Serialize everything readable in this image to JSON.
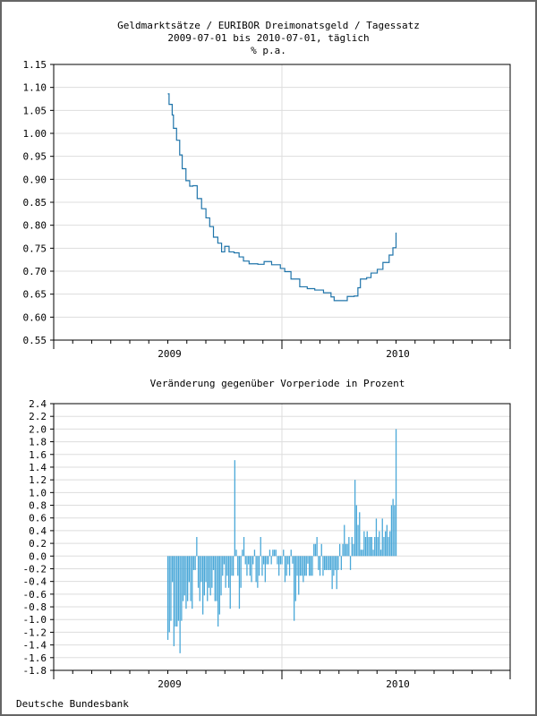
{
  "title_lines": [
    "Geldmarktsätze / EURIBOR Dreimonatsgeld / Tagessatz",
    "2009-07-01 bis 2010-07-01, täglich",
    "% p.a."
  ],
  "footer": "Deutsche Bundesbank",
  "colors": {
    "line": "#1f74aa",
    "bar": "#4aa8d8",
    "grid": "#dddddd",
    "axis": "#000000",
    "border": "#666666"
  },
  "chart_data": [
    {
      "type": "line",
      "title": "Geldmarktsätze / EURIBOR Dreimonatsgeld / Tagessatz",
      "subtitle": "2009-07-01 bis 2010-07-01, täglich",
      "ylabel": "% p.a.",
      "x_unit": "days since 2009-07-01",
      "xlim_months": [
        "2009-01",
        "2010-12"
      ],
      "ylim": [
        0.55,
        1.15
      ],
      "yticks": [
        "1.15",
        "1.10",
        "1.05",
        "1.00",
        "0.95",
        "0.90",
        "0.85",
        "0.80",
        "0.75",
        "0.70",
        "0.65",
        "0.60",
        "0.55"
      ],
      "xtick_labels": [
        "2009",
        "2010"
      ],
      "grid": true,
      "x": [
        0,
        2,
        7,
        9,
        14,
        19,
        23,
        29,
        35,
        40,
        47,
        54,
        61,
        67,
        73,
        80,
        86,
        91,
        98,
        106,
        114,
        121,
        130,
        144,
        154,
        166,
        180,
        187,
        197,
        211,
        223,
        235,
        249,
        261,
        266,
        275,
        287,
        298,
        304,
        308,
        318,
        325,
        335,
        344,
        354,
        360,
        365
      ],
      "y": [
        1.086,
        1.063,
        1.04,
        1.011,
        0.985,
        0.953,
        0.923,
        0.897,
        0.885,
        0.886,
        0.858,
        0.836,
        0.816,
        0.797,
        0.774,
        0.761,
        0.742,
        0.754,
        0.742,
        0.74,
        0.731,
        0.722,
        0.716,
        0.715,
        0.721,
        0.714,
        0.706,
        0.699,
        0.683,
        0.666,
        0.662,
        0.659,
        0.653,
        0.644,
        0.636,
        0.636,
        0.645,
        0.646,
        0.664,
        0.683,
        0.686,
        0.696,
        0.704,
        0.719,
        0.735,
        0.751,
        0.784
      ]
    },
    {
      "type": "bar",
      "title": "Veränderung gegenüber Vorperiode in Prozent",
      "x_range": [
        "2009-07-01",
        "2010-07-01"
      ],
      "xlim_months": [
        "2009-01",
        "2010-12"
      ],
      "ylim": [
        -1.8,
        2.4
      ],
      "yticks": [
        "2.4",
        "2.2",
        "2.0",
        "1.8",
        "1.6",
        "1.4",
        "1.2",
        "1.0",
        "0.8",
        "0.6",
        "0.4",
        "0.2",
        "0.0",
        "-0.2",
        "-0.4",
        "-0.6",
        "-0.8",
        "-1.0",
        "-1.2",
        "-1.4",
        "-1.6",
        "-1.8"
      ],
      "xtick_labels": [
        "2009",
        "2010"
      ],
      "grid": true,
      "values": [
        -1.32,
        -1.2,
        -1.02,
        -0.41,
        -1.42,
        -1.11,
        -1.11,
        -1.02,
        -1.53,
        -1.02,
        -0.71,
        -0.62,
        -0.83,
        -0.71,
        -0.41,
        -0.71,
        -0.83,
        -0.22,
        -0.22,
        0.3,
        -0.5,
        -0.71,
        -0.41,
        -0.92,
        -0.62,
        -0.41,
        -0.71,
        -0.5,
        -0.62,
        -0.5,
        -0.22,
        -0.71,
        -0.71,
        -1.11,
        -0.92,
        -0.62,
        -0.31,
        -0.13,
        -0.5,
        -0.31,
        -0.5,
        -0.83,
        -0.31,
        -0.31,
        1.51,
        0.1,
        -0.31,
        -0.83,
        -0.5,
        0.1,
        0.3,
        -0.13,
        -0.31,
        -0.13,
        -0.31,
        -0.41,
        -0.13,
        0.1,
        -0.41,
        -0.5,
        -0.31,
        0.3,
        -0.31,
        -0.13,
        -0.41,
        -0.13,
        -0.13,
        0.1,
        -0.13,
        0.1,
        0.1,
        0.1,
        -0.13,
        -0.31,
        -0.13,
        -0.13,
        0.1,
        -0.41,
        -0.31,
        -0.13,
        -0.31,
        0.1,
        -0.12,
        -1.02,
        -0.71,
        -0.31,
        -0.61,
        -0.31,
        -0.31,
        -0.41,
        -0.31,
        -0.31,
        -0.12,
        -0.31,
        -0.31,
        -0.31,
        0.19,
        0.19,
        0.3,
        -0.22,
        -0.31,
        0.19,
        -0.31,
        -0.22,
        -0.22,
        -0.22,
        -0.22,
        -0.22,
        -0.52,
        -0.31,
        -0.22,
        -0.52,
        -0.22,
        0.19,
        -0.22,
        0.19,
        0.49,
        0.19,
        0.19,
        0.3,
        -0.22,
        0.3,
        0.19,
        1.2,
        0.8,
        0.49,
        0.69,
        0.1,
        0.1,
        0.39,
        0.3,
        0.39,
        0.3,
        0.3,
        0.3,
        0.1,
        0.3,
        0.59,
        0.3,
        0.39,
        0.1,
        0.59,
        0.3,
        0.39,
        0.49,
        0.3,
        0.39,
        0.8,
        0.9,
        0.8,
        2.0
      ]
    }
  ]
}
